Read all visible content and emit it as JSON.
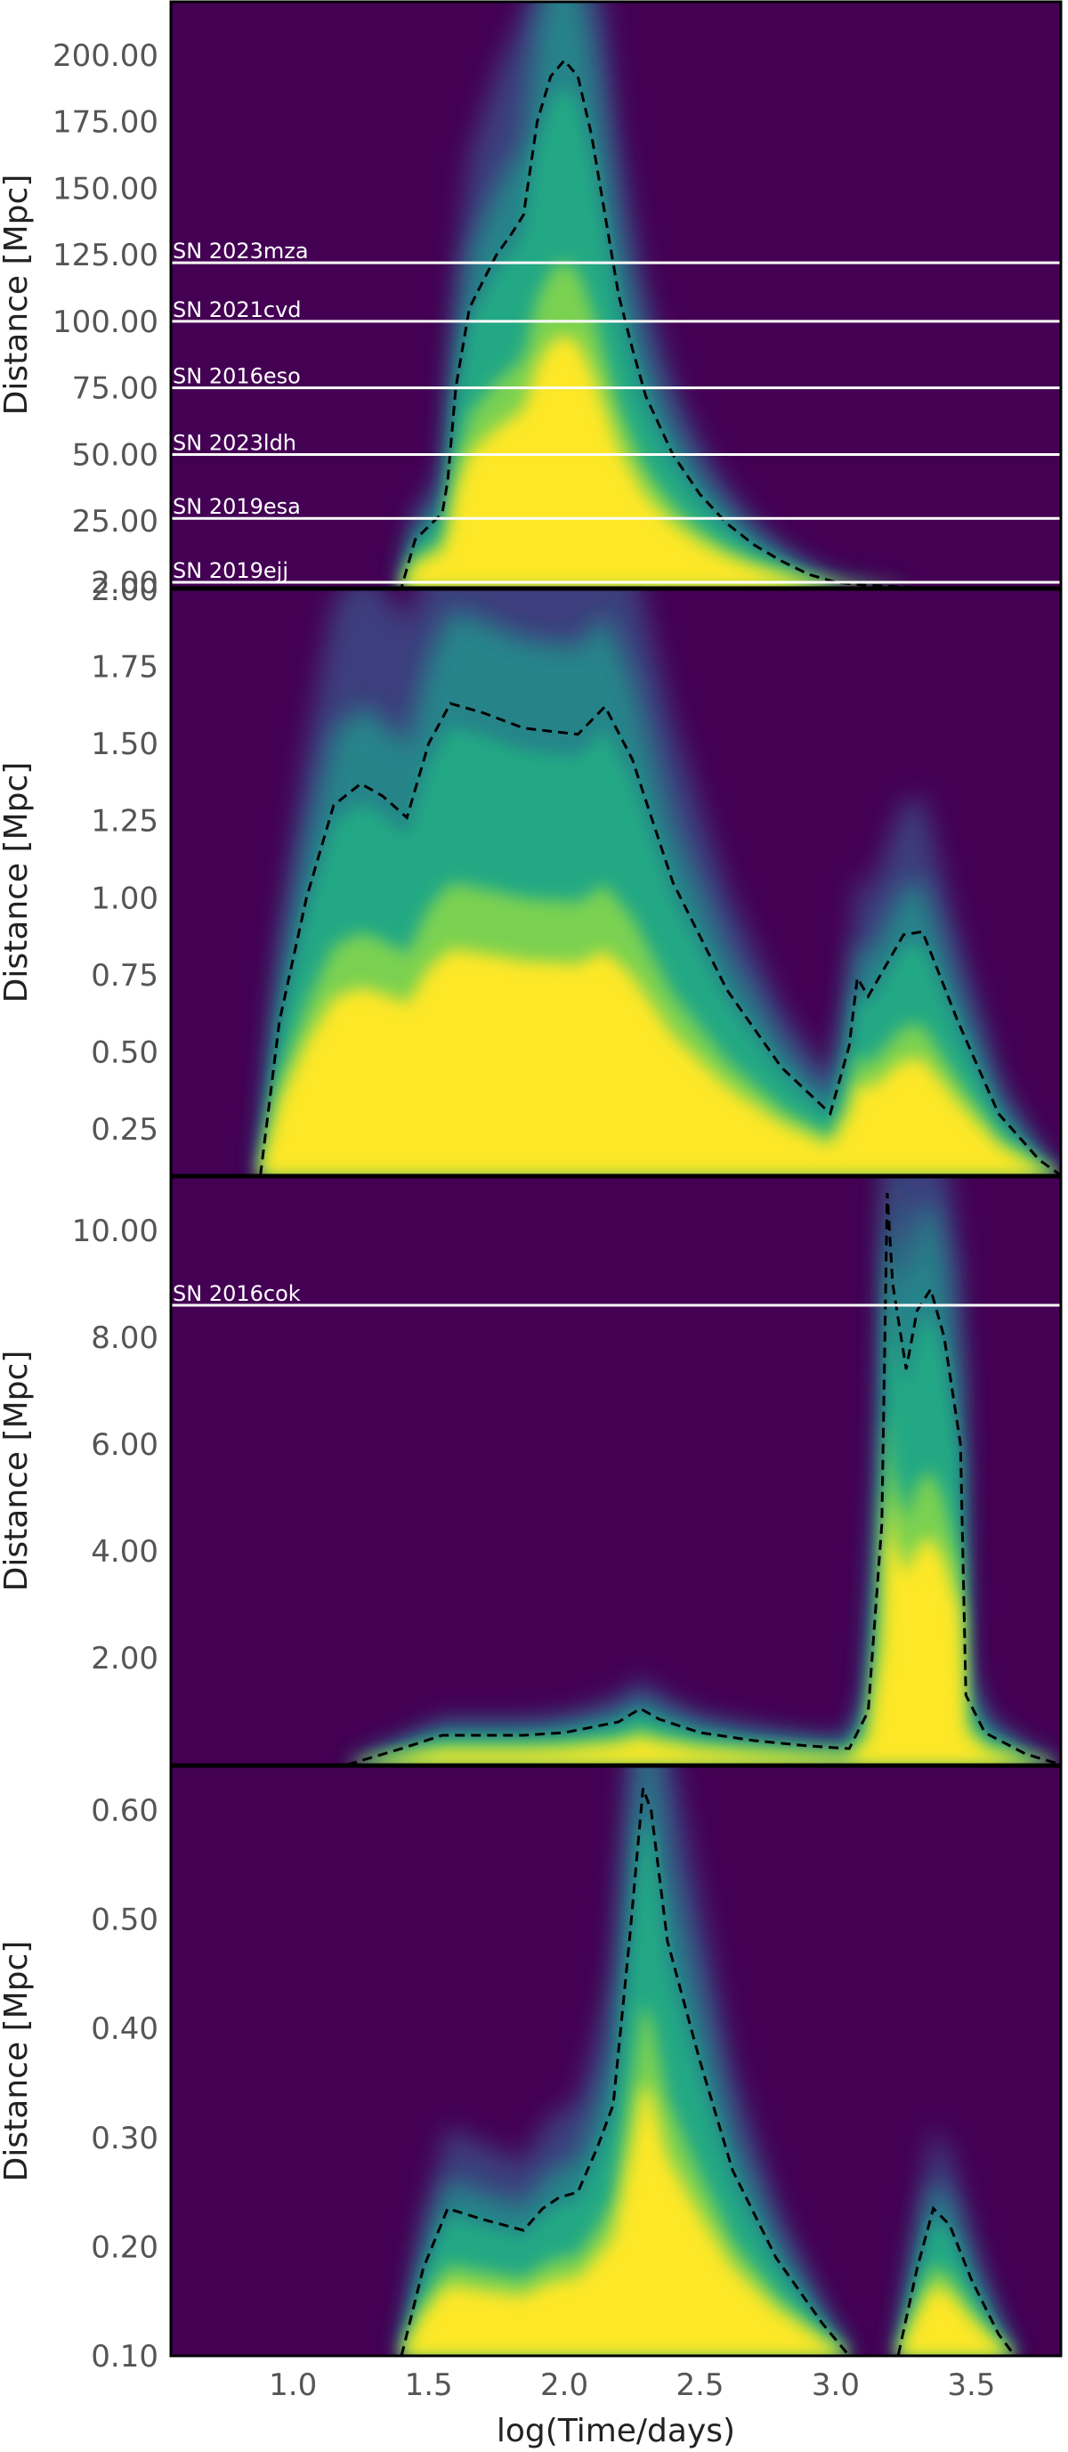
{
  "chart_data": [
    {
      "type": "heatmap",
      "panel": "top",
      "ylabel": "Distance [Mpc]",
      "ylim": [
        0,
        220
      ],
      "xlim": [
        0.55,
        3.83
      ],
      "yticks": [
        2.0,
        25,
        50,
        75,
        100,
        125,
        150,
        175,
        200
      ],
      "ytick_labels": [
        "2.00",
        "25.00",
        "50.00",
        "75.00",
        "100.00",
        "125.00",
        "150.00",
        "175.00",
        "200.00"
      ],
      "colormap": "viridis",
      "contour_dashed": {
        "x": [
          0.55,
          1.4,
          1.45,
          1.55,
          1.57,
          1.6,
          1.65,
          1.7,
          1.75,
          1.8,
          1.85,
          1.9,
          1.95,
          2.0,
          2.05,
          2.1,
          2.15,
          2.2,
          2.25,
          2.3,
          2.4,
          2.5,
          2.6,
          2.7,
          2.8,
          2.9,
          3.0,
          3.1,
          3.2,
          3.3,
          3.5,
          3.83
        ],
        "y": [
          0,
          0,
          18,
          28,
          40,
          75,
          105,
          115,
          125,
          132,
          140,
          175,
          192,
          198,
          192,
          170,
          140,
          110,
          90,
          72,
          50,
          35,
          24,
          16,
          10,
          5,
          2,
          1,
          0.5,
          0,
          0,
          0
        ]
      },
      "hlines": [
        {
          "name": "SN 2023mza",
          "y": 122
        },
        {
          "name": "SN 2021cvd",
          "y": 100
        },
        {
          "name": "SN 2016eso",
          "y": 75
        },
        {
          "name": "SN 2023ldh",
          "y": 50
        },
        {
          "name": "SN 2019esa",
          "y": 26
        },
        {
          "name": "SN 2019ejj",
          "y": 2
        }
      ]
    },
    {
      "type": "heatmap",
      "panel": "second",
      "ylabel": "Distance [Mpc]",
      "ylim": [
        0.1,
        2.0
      ],
      "xlim": [
        0.55,
        3.83
      ],
      "yticks": [
        0.25,
        0.5,
        0.75,
        1.0,
        1.25,
        1.5,
        1.75,
        2.0
      ],
      "ytick_labels": [
        "0.25",
        "0.50",
        "0.75",
        "1.00",
        "1.25",
        "1.50",
        "1.75",
        "2.00"
      ],
      "colormap": "viridis",
      "contour_dashed": {
        "x": [
          0.88,
          0.95,
          1.05,
          1.15,
          1.25,
          1.33,
          1.42,
          1.5,
          1.58,
          1.7,
          1.85,
          2.05,
          2.15,
          2.25,
          2.4,
          2.6,
          2.8,
          2.98,
          3.05,
          3.08,
          3.12,
          3.25,
          3.32,
          3.45,
          3.6,
          3.75,
          3.83
        ],
        "y": [
          0.1,
          0.6,
          1.0,
          1.3,
          1.37,
          1.33,
          1.26,
          1.5,
          1.63,
          1.6,
          1.55,
          1.53,
          1.62,
          1.45,
          1.05,
          0.7,
          0.45,
          0.3,
          0.52,
          0.74,
          0.68,
          0.88,
          0.89,
          0.6,
          0.3,
          0.15,
          0.1
        ]
      },
      "hlines": []
    },
    {
      "type": "heatmap",
      "panel": "third",
      "ylabel": "Distance [Mpc]",
      "ylim": [
        0,
        11
      ],
      "xlim": [
        0.55,
        3.83
      ],
      "yticks": [
        2.0,
        4.0,
        6.0,
        8.0,
        10.0
      ],
      "ytick_labels": [
        "2.00",
        "4.00",
        "6.00",
        "8.00",
        "10.00"
      ],
      "colormap": "viridis",
      "contour_dashed": {
        "x": [
          1.2,
          1.4,
          1.55,
          1.7,
          1.85,
          2.0,
          2.2,
          2.28,
          2.35,
          2.5,
          2.7,
          2.9,
          3.05,
          3.12,
          3.17,
          3.19,
          3.21,
          3.26,
          3.3,
          3.35,
          3.4,
          3.46,
          3.48,
          3.55,
          3.7,
          3.83
        ],
        "y": [
          0,
          0.3,
          0.55,
          0.55,
          0.55,
          0.6,
          0.8,
          1.05,
          0.85,
          0.6,
          0.45,
          0.35,
          0.3,
          1.0,
          4.5,
          10.7,
          9.0,
          7.4,
          8.5,
          8.9,
          8.0,
          6.0,
          1.3,
          0.6,
          0.2,
          0
        ]
      },
      "hlines": [
        {
          "name": "SN 2016cok",
          "y": 8.6
        }
      ]
    },
    {
      "type": "heatmap",
      "panel": "bottom",
      "ylabel": "Distance [Mpc]",
      "xlabel": "log(Time/days)",
      "ylim": [
        0.1,
        0.64
      ],
      "xlim": [
        0.55,
        3.83
      ],
      "xticks": [
        1.0,
        1.5,
        2.0,
        2.5,
        3.0,
        3.5
      ],
      "xtick_labels": [
        "1.0",
        "1.5",
        "2.0",
        "2.5",
        "3.0",
        "3.5"
      ],
      "yticks": [
        0.1,
        0.2,
        0.3,
        0.4,
        0.5,
        0.6
      ],
      "ytick_labels": [
        "0.10",
        "0.20",
        "0.30",
        "0.40",
        "0.50",
        "0.60"
      ],
      "colormap": "viridis",
      "contour_dashed": {
        "x": [
          1.4,
          1.48,
          1.57,
          1.7,
          1.85,
          1.92,
          1.98,
          2.05,
          2.12,
          2.18,
          2.24,
          2.29,
          2.32,
          2.38,
          2.5,
          2.62,
          2.78,
          2.95,
          3.05,
          3.23,
          3.3,
          3.36,
          3.42,
          3.5,
          3.6,
          3.66
        ],
        "y": [
          0.1,
          0.18,
          0.235,
          0.225,
          0.215,
          0.235,
          0.245,
          0.25,
          0.29,
          0.33,
          0.48,
          0.62,
          0.6,
          0.48,
          0.37,
          0.27,
          0.19,
          0.13,
          0.1,
          0.1,
          0.18,
          0.235,
          0.22,
          0.17,
          0.12,
          0.1
        ]
      },
      "hlines": []
    }
  ]
}
